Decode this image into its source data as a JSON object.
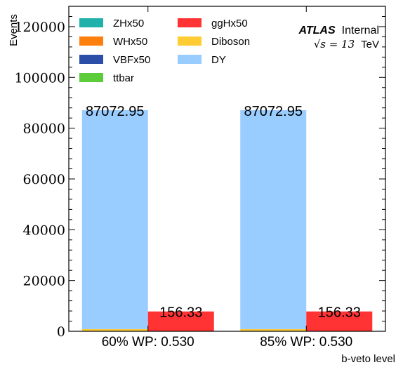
{
  "chart_data": {
    "type": "bar",
    "stacked": true,
    "ylabel": "Events",
    "xlabel": "b-veto level",
    "ylim": [
      0,
      128000
    ],
    "yticks": [
      0,
      20000,
      40000,
      60000,
      80000,
      100000,
      120000
    ],
    "categories": [
      "60% WP: 0.530",
      "85% WP: 0.530"
    ],
    "annotation": {
      "experiment": "ATLAS",
      "status": "Internal",
      "energy_prefix": "√s = 13",
      "energy_unit": "TeV"
    },
    "legend_placement": "upper-left, two columns",
    "groups": [
      {
        "position": "left",
        "total_label": "87072.95",
        "series": [
          {
            "name": "ZHx50",
            "color": "#20b2aa",
            "values": [
              0,
              0
            ]
          },
          {
            "name": "WHx50",
            "color": "#ff7f0e",
            "values": [
              0,
              0
            ]
          },
          {
            "name": "VBFx50",
            "color": "#2b4fa8",
            "values": [
              0,
              0
            ]
          },
          {
            "name": "ttbar",
            "color": "#5ccc3a",
            "values": [
              150,
              150
            ]
          },
          {
            "name": "Diboson",
            "color": "#ffcc33",
            "values": [
              700,
              700
            ]
          },
          {
            "name": "DY",
            "color": "#99ccff",
            "values": [
              86222.95,
              86222.95
            ]
          }
        ]
      },
      {
        "position": "right",
        "total_label": "156.33",
        "series": [
          {
            "name": "ggHx50",
            "color": "#ff3333",
            "values": [
              7816.5,
              7816.5
            ]
          }
        ]
      }
    ]
  }
}
